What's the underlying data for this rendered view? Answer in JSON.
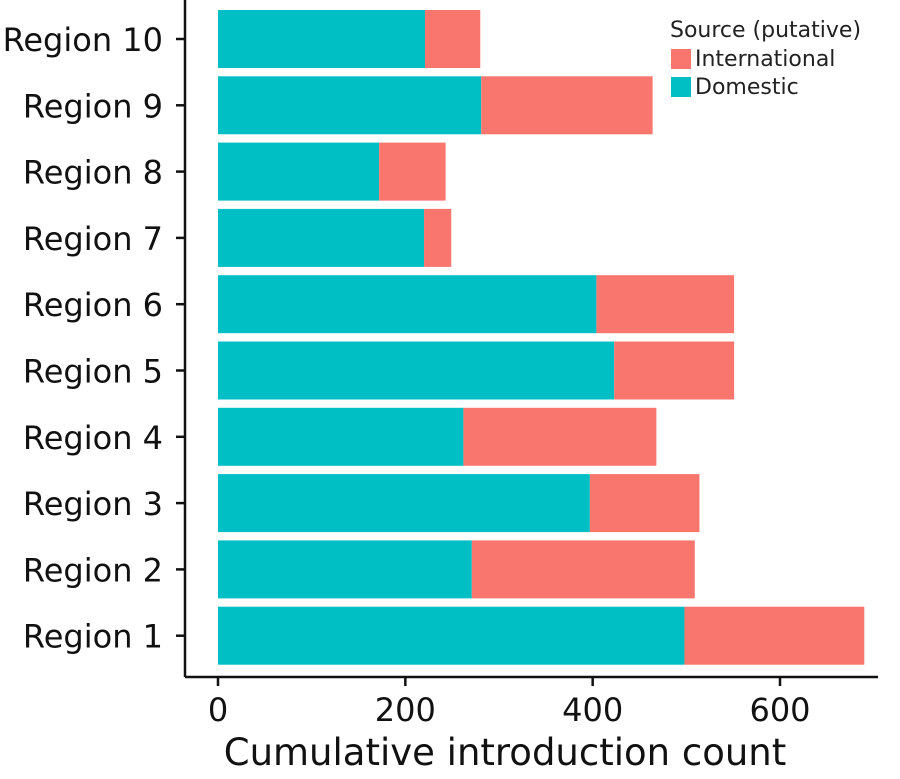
{
  "chart_data": {
    "type": "bar",
    "orientation": "horizontal",
    "stacked": true,
    "title": "",
    "xlabel": "Cumulative introduction count",
    "ylabel": "",
    "xlim": [
      0,
      715
    ],
    "xticks": [
      0,
      200,
      400,
      600
    ],
    "categories": [
      "Region 1",
      "Region 2",
      "Region 3",
      "Region 4",
      "Region 5",
      "Region 6",
      "Region 7",
      "Region 8",
      "Region 9",
      "Region 10"
    ],
    "series": [
      {
        "name": "Domestic",
        "color": "#00BFC4",
        "values": [
          498,
          271,
          397,
          262,
          423,
          404,
          220,
          172,
          281,
          221
        ]
      },
      {
        "name": "International",
        "color": "#F8766D",
        "values": [
          192,
          238,
          117,
          206,
          128,
          147,
          29,
          71,
          183,
          59
        ]
      }
    ],
    "legend": {
      "title": "Source (putative)",
      "position": "top-right",
      "entries": [
        "International",
        "Domestic"
      ]
    },
    "grid": false
  }
}
